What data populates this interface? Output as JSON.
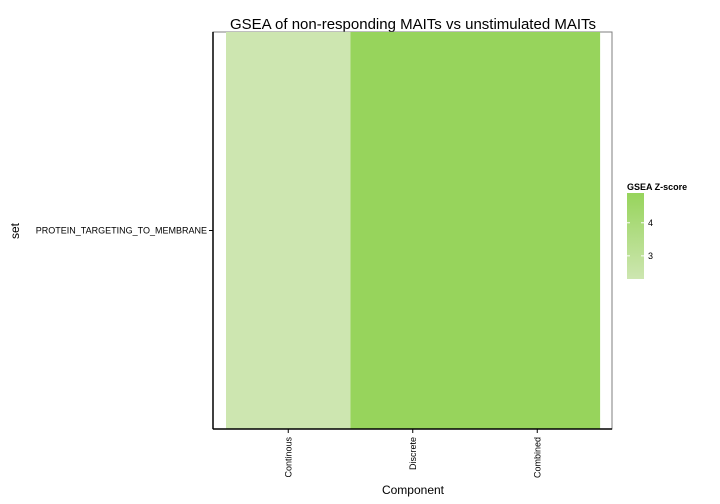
{
  "chart_data": {
    "type": "heatmap",
    "title": "GSEA of non-responding MAITs vs unstimulated MAITs",
    "xlabel": "Component",
    "ylabel": "set",
    "x_categories": [
      "Continous",
      "Discrete",
      "Combined"
    ],
    "y_categories": [
      "PROTEIN_TARGETING_TO_MEMBRANE"
    ],
    "cells": [
      {
        "x": "Continous",
        "y": "PROTEIN_TARGETING_TO_MEMBRANE",
        "value": 2.3
      },
      {
        "x": "Discrete",
        "y": "PROTEIN_TARGETING_TO_MEMBRANE",
        "value": 4.9
      },
      {
        "x": "Combined",
        "y": "PROTEIN_TARGETING_TO_MEMBRANE",
        "value": 4.9
      }
    ],
    "legend": {
      "title": "GSEA Z-score",
      "ticks": [
        3,
        4
      ],
      "range": [
        2.3,
        4.9
      ],
      "low_color": "#cde6b0",
      "high_color": "#97d45c",
      "placement": "right"
    },
    "grid": false
  }
}
